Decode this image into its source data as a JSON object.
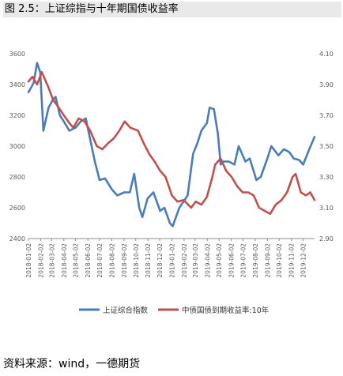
{
  "figure": {
    "title": "图 2.5：上证综指与十年期国债收益率",
    "source": "资料来源：wind，一德期货"
  },
  "colors": {
    "series1": "#4a7bbd",
    "series2": "#c0504d",
    "axis": "#8c8c8c",
    "text": "#595959"
  },
  "chart_data": {
    "type": "line",
    "title": "",
    "xlabel": "",
    "ylabel": "",
    "grid": false,
    "legend_position": "bottom",
    "x_tick_labels": [
      "2018-01-02",
      "2018-02-02",
      "2018-03-02",
      "2018-04-02",
      "2018-05-02",
      "2018-06-02",
      "2018-07-02",
      "2018-08-02",
      "2018-09-02",
      "2018-10-02",
      "2018-11-02",
      "2018-12-02",
      "2019-01-02",
      "2019-02-02",
      "2019-03-02",
      "2019-04-02",
      "2019-05-02",
      "2019-06-02",
      "2019-07-02",
      "2019-08-02",
      "2019-09-02",
      "2019-10-02",
      "2019-11-02",
      "2019-12-02"
    ],
    "y_left": {
      "ylim": [
        2400,
        3600
      ],
      "ticks": [
        "2400",
        "2600",
        "2800",
        "3000",
        "3200",
        "3400",
        "3600"
      ]
    },
    "y_right": {
      "ylim": [
        2.9,
        4.1
      ],
      "ticks": [
        "2.90",
        "3.10",
        "3.30",
        "3.50",
        "3.70",
        "3.90",
        "4.10"
      ]
    },
    "series": [
      {
        "name": "上证综合指数",
        "axis": "left",
        "x": [
          "2018-01-02",
          "2018-01-15",
          "2018-01-24",
          "2018-02-01",
          "2018-02-09",
          "2018-02-22",
          "2018-03-05",
          "2018-03-12",
          "2018-03-23",
          "2018-04-02",
          "2018-04-16",
          "2018-05-02",
          "2018-05-15",
          "2018-05-28",
          "2018-06-05",
          "2018-06-20",
          "2018-07-02",
          "2018-07-16",
          "2018-08-02",
          "2018-08-16",
          "2018-09-03",
          "2018-09-17",
          "2018-09-28",
          "2018-10-11",
          "2018-10-19",
          "2018-11-01",
          "2018-11-16",
          "2018-12-03",
          "2018-12-14",
          "2018-12-28",
          "2019-01-04",
          "2019-01-21",
          "2019-02-11",
          "2019-02-25",
          "2019-03-08",
          "2019-03-18",
          "2019-04-01",
          "2019-04-08",
          "2019-04-19",
          "2019-04-29",
          "2019-05-06",
          "2019-05-13",
          "2019-05-27",
          "2019-06-10",
          "2019-06-21",
          "2019-07-08",
          "2019-07-19",
          "2019-08-05",
          "2019-08-16",
          "2019-09-02",
          "2019-09-12",
          "2019-09-30",
          "2019-10-14",
          "2019-10-28",
          "2019-11-08",
          "2019-11-22",
          "2019-12-02",
          "2019-12-16",
          "2019-12-31"
        ],
        "values": [
          3350,
          3410,
          3540,
          3480,
          3100,
          3250,
          3300,
          3320,
          3200,
          3160,
          3100,
          3120,
          3160,
          3180,
          3080,
          2900,
          2780,
          2790,
          2720,
          2680,
          2700,
          2700,
          2820,
          2600,
          2540,
          2660,
          2700,
          2580,
          2600,
          2500,
          2480,
          2600,
          2680,
          2950,
          3020,
          3100,
          3150,
          3250,
          3240,
          3080,
          2880,
          2900,
          2900,
          2880,
          3000,
          2900,
          2920,
          2780,
          2800,
          2920,
          3000,
          2940,
          2980,
          2960,
          2920,
          2910,
          2880,
          2970,
          3060
        ]
      },
      {
        "name": "中债国债到期收益率:10年",
        "axis": "right",
        "x": [
          "2018-01-02",
          "2018-01-12",
          "2018-01-24",
          "2018-02-05",
          "2018-02-22",
          "2018-03-06",
          "2018-03-20",
          "2018-04-02",
          "2018-04-16",
          "2018-04-26",
          "2018-05-10",
          "2018-05-25",
          "2018-06-08",
          "2018-06-25",
          "2018-07-09",
          "2018-07-24",
          "2018-08-07",
          "2018-08-21",
          "2018-09-04",
          "2018-09-18",
          "2018-10-08",
          "2018-10-22",
          "2018-11-05",
          "2018-11-19",
          "2018-12-03",
          "2018-12-17",
          "2019-01-02",
          "2019-01-16",
          "2019-02-01",
          "2019-02-20",
          "2019-03-04",
          "2019-03-18",
          "2019-04-01",
          "2019-04-15",
          "2019-04-22",
          "2019-05-06",
          "2019-05-20",
          "2019-06-03",
          "2019-06-17",
          "2019-07-01",
          "2019-07-15",
          "2019-07-29",
          "2019-08-12",
          "2019-08-26",
          "2019-09-09",
          "2019-09-23",
          "2019-10-08",
          "2019-10-22",
          "2019-11-05",
          "2019-11-13",
          "2019-11-26",
          "2019-12-09",
          "2019-12-20",
          "2019-12-31"
        ],
        "values": [
          3.92,
          3.95,
          3.9,
          3.98,
          3.88,
          3.8,
          3.75,
          3.7,
          3.65,
          3.62,
          3.68,
          3.66,
          3.6,
          3.5,
          3.48,
          3.52,
          3.55,
          3.6,
          3.66,
          3.62,
          3.6,
          3.52,
          3.45,
          3.4,
          3.34,
          3.3,
          3.18,
          3.14,
          3.15,
          3.1,
          3.14,
          3.12,
          3.17,
          3.3,
          3.38,
          3.42,
          3.34,
          3.3,
          3.24,
          3.2,
          3.2,
          3.18,
          3.1,
          3.08,
          3.06,
          3.12,
          3.15,
          3.2,
          3.3,
          3.32,
          3.2,
          3.18,
          3.2,
          3.15
        ]
      }
    ]
  }
}
